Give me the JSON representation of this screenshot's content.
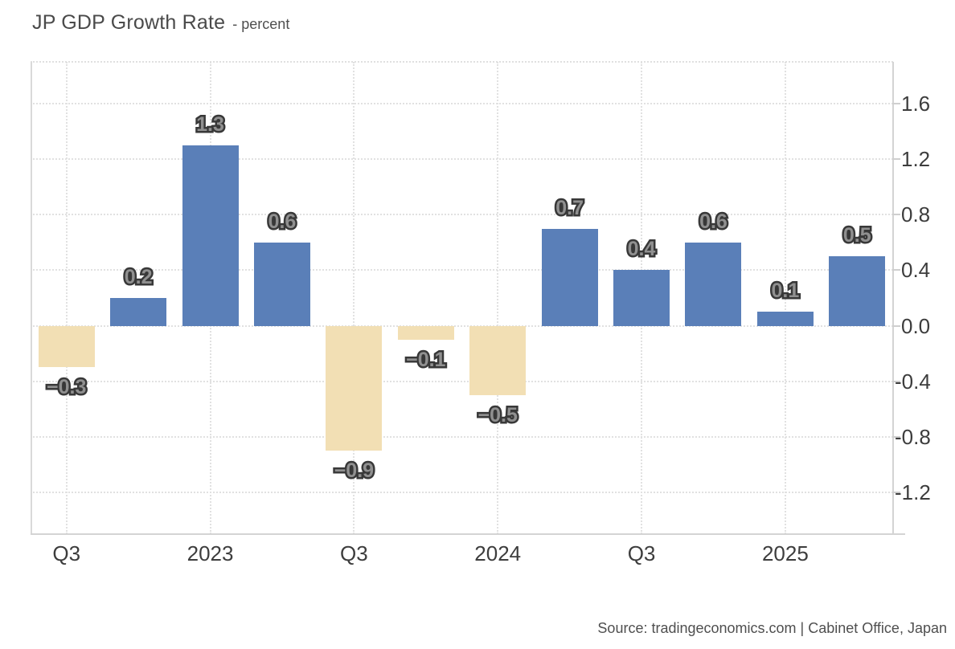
{
  "page": {
    "source": "Source: tradingeconomics.com | Cabinet Office, Japan"
  },
  "chart_data": {
    "type": "bar",
    "title": "JP GDP Growth Rate",
    "subtitle": "- percent",
    "unit": "percent",
    "values": [
      -0.3,
      0.2,
      1.3,
      0.6,
      -0.9,
      -0.1,
      -0.5,
      0.7,
      0.4,
      0.6,
      0.1,
      0.5
    ],
    "bar_labels": [
      "−0.3",
      "0.2",
      "1.3",
      "0.6",
      "−0.9",
      "−0.1",
      "−0.5",
      "0.7",
      "0.4",
      "0.6",
      "0.1",
      "0.5"
    ],
    "x_ticks": [
      {
        "position": 0,
        "label": "Q3"
      },
      {
        "position": 2,
        "label": "2023"
      },
      {
        "position": 4,
        "label": "Q3"
      },
      {
        "position": 6,
        "label": "2024"
      },
      {
        "position": 8,
        "label": "Q3"
      },
      {
        "position": 10,
        "label": "2025"
      }
    ],
    "y_tick_values": [
      1.6,
      1.2,
      0.8,
      0.4,
      0.0,
      -0.4,
      -0.8,
      -1.2
    ],
    "y_tick_labels": [
      "1.6",
      "1.2",
      "0.8",
      "0.4",
      "0.0",
      "-0.4",
      "-0.8",
      "-1.2"
    ],
    "ylim": [
      -1.5,
      1.9
    ],
    "y_axis_side": "right",
    "grid": "dotted",
    "legend": "none",
    "colors": {
      "positive_bar": "#5a7fb8",
      "negative_bar": "#f2dfb4",
      "gridline": "#e1e1e1",
      "axis_line": "#d4d4d4",
      "value_label_fill": "#909090",
      "value_label_outline": "#383838",
      "axis_text": "#3d3d3d",
      "title_text": "#4a4a4a"
    }
  }
}
